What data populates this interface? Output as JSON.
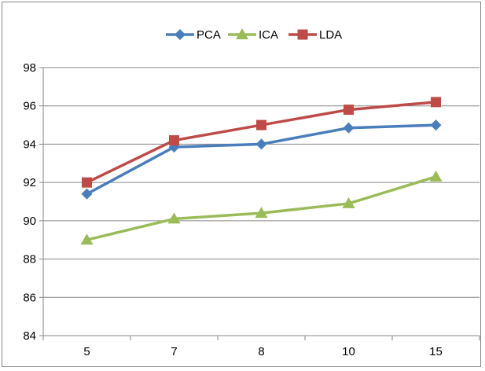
{
  "chart_data": {
    "type": "line",
    "title": "",
    "xlabel": "",
    "ylabel": "",
    "categories": [
      "5",
      "7",
      "8",
      "10",
      "15"
    ],
    "ylim": [
      84,
      98
    ],
    "yticks": [
      84,
      86,
      88,
      90,
      92,
      94,
      96,
      98
    ],
    "grid": "horizontal",
    "legend_position": "top",
    "series": [
      {
        "name": "PCA",
        "values": [
          91.4,
          93.85,
          94.0,
          94.85,
          95.0
        ],
        "color": "#4a7ebb",
        "marker": "diamond"
      },
      {
        "name": "ICA",
        "values": [
          89.0,
          90.1,
          90.4,
          90.9,
          92.3
        ],
        "color": "#9bbb59",
        "marker": "triangle"
      },
      {
        "name": "LDA",
        "values": [
          92.0,
          94.2,
          95.0,
          95.8,
          96.2
        ],
        "color": "#be4b48",
        "marker": "square"
      }
    ]
  }
}
